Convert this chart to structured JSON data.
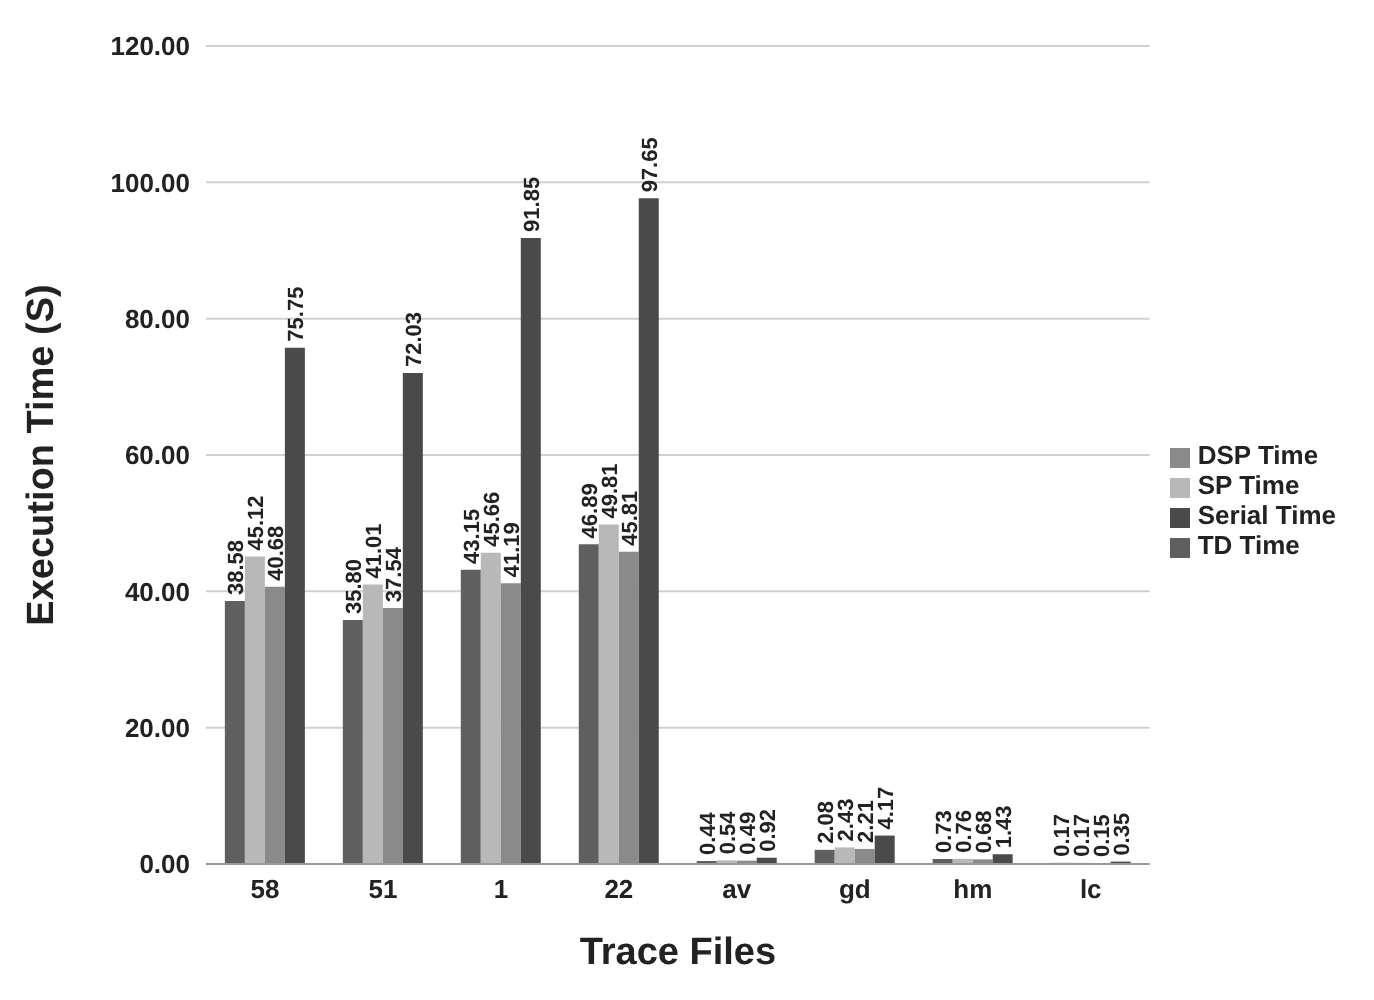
{
  "chart_data": {
    "type": "bar",
    "xlabel": "Trace Files",
    "ylabel": "Execution Time (S)",
    "categories": [
      "58",
      "51",
      "1",
      "22",
      "av",
      "gd",
      "hm",
      "lc"
    ],
    "series": [
      {
        "name": "TD Time",
        "color": "#5f5f5f",
        "values": [
          38.58,
          35.8,
          43.15,
          46.89,
          0.44,
          2.08,
          0.73,
          0.17
        ],
        "value_labels": [
          "38.58",
          "35.80",
          "43.15",
          "46.89",
          "0.44",
          "2.08",
          "0.73",
          "0.17"
        ]
      },
      {
        "name": "SP Time",
        "color": "#b8b8b8",
        "values": [
          45.12,
          41.01,
          45.66,
          49.81,
          0.54,
          2.43,
          0.76,
          0.17
        ],
        "value_labels": [
          "45.12",
          "41.01",
          "45.66",
          "49.81",
          "0.54",
          "2.43",
          "0.76",
          "0.17"
        ]
      },
      {
        "name": "DSP Time",
        "color": "#8a8a8a",
        "values": [
          40.68,
          37.54,
          41.19,
          45.81,
          0.49,
          2.21,
          0.68,
          0.15
        ],
        "value_labels": [
          "40.68",
          "37.54",
          "41.19",
          "45.81",
          "0.49",
          "2.21",
          "0.68",
          "0.15"
        ]
      },
      {
        "name": "Serial Time",
        "color": "#4a4a4a",
        "values": [
          75.75,
          72.03,
          91.85,
          97.65,
          0.92,
          4.17,
          1.43,
          0.35
        ],
        "value_labels": [
          "75.75",
          "72.03",
          "91.85",
          "97.65",
          "0.92",
          "4.17",
          "1.43",
          "0.35"
        ]
      }
    ],
    "ylim": [
      0,
      120
    ],
    "yticks": [
      {
        "value": 0,
        "label": "0.00"
      },
      {
        "value": 20,
        "label": "20.00"
      },
      {
        "value": 40,
        "label": "40.00"
      },
      {
        "value": 60,
        "label": "60.00"
      },
      {
        "value": 80,
        "label": "80.00"
      },
      {
        "value": 100,
        "label": "100.00"
      },
      {
        "value": 120,
        "label": "120.00"
      }
    ],
    "grid": "y",
    "legend": "right"
  }
}
